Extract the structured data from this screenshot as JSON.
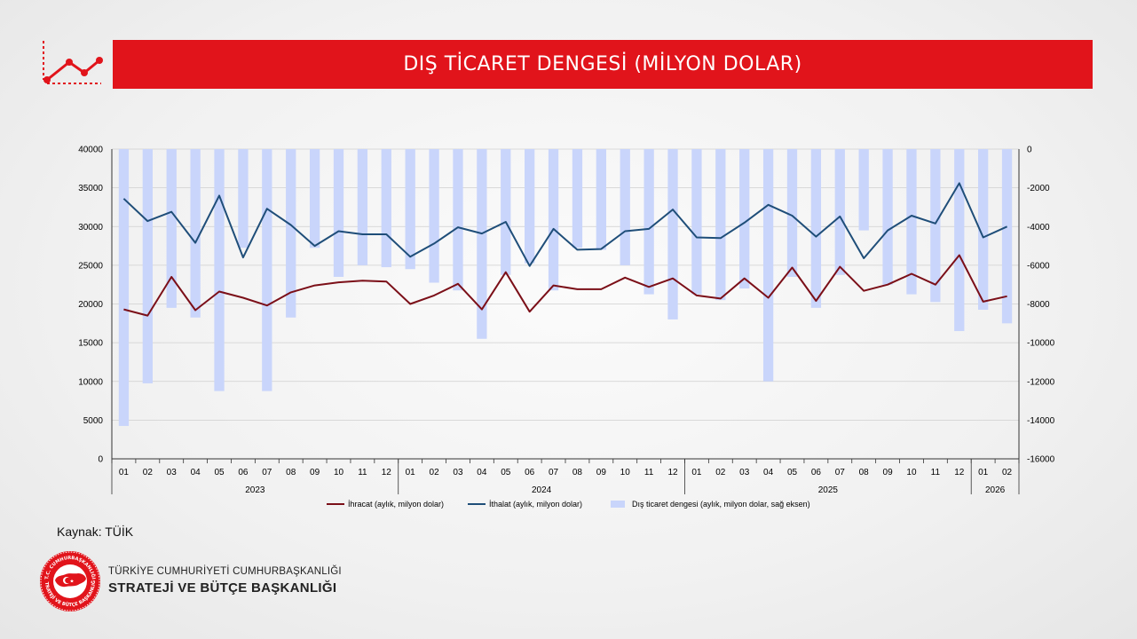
{
  "title": "DIŞ TİCARET DENGESİ (MİLYON DOLAR)",
  "source_label": "Kaynak: TÜİK",
  "org": {
    "line1": "TÜRKİYE CUMHURİYETİ CUMHURBAŞKANLIĞI",
    "line2": "STRATEJİ VE BÜTÇE BAŞKANLIĞI",
    "seal_top": "T.C. CUMHURBAŞKANLIĞI",
    "seal_bottom": "STRATEJİ VE BÜTÇE BAŞKANLIĞI"
  },
  "colors": {
    "accent": "#e1141b",
    "export": "#7b0f18",
    "import": "#1f4e79",
    "balance": "#c9d5fb"
  },
  "chart_data": {
    "type": "bar+line",
    "categories": [
      "01",
      "02",
      "03",
      "04",
      "05",
      "06",
      "07",
      "08",
      "09",
      "10",
      "11",
      "12",
      "01",
      "02",
      "03",
      "04",
      "05",
      "06",
      "07",
      "08",
      "09",
      "10",
      "11",
      "12",
      "01",
      "02",
      "03",
      "04",
      "05",
      "06",
      "07",
      "08",
      "09",
      "10",
      "11",
      "12",
      "01",
      "02"
    ],
    "year_groups": [
      {
        "label": "2023",
        "count": 12
      },
      {
        "label": "2024",
        "count": 12
      },
      {
        "label": "2025",
        "count": 12
      },
      {
        "label": "2026",
        "count": 2
      }
    ],
    "left_axis": {
      "ylim": [
        0,
        40000
      ],
      "ticks": [
        0,
        5000,
        10000,
        15000,
        20000,
        25000,
        30000,
        35000,
        40000
      ]
    },
    "right_axis": {
      "ylim": [
        -16000,
        0
      ],
      "ticks": [
        -16000,
        -14000,
        -12000,
        -10000,
        -8000,
        -6000,
        -4000,
        -2000,
        0
      ]
    },
    "grid": true,
    "legend_position": "bottom",
    "series": [
      {
        "name": "İhracat (aylık, milyon dolar)",
        "kind": "line",
        "axis": "left",
        "color": "#7b0f18",
        "values": [
          19300,
          18500,
          23500,
          19200,
          21600,
          20800,
          19800,
          21500,
          22400,
          22800,
          23000,
          22900,
          20000,
          21100,
          22600,
          19300,
          24100,
          19000,
          22400,
          21900,
          21900,
          23400,
          22200,
          23300,
          21100,
          20700,
          23300,
          20800,
          24700,
          20400,
          24800,
          21700,
          22500,
          23900,
          22500,
          26300,
          20300,
          21000
        ]
      },
      {
        "name": "İthalat (aylık, milyon dolar)",
        "kind": "line",
        "axis": "left",
        "color": "#1f4e79",
        "values": [
          33600,
          30700,
          31900,
          27900,
          34000,
          26000,
          32300,
          30200,
          27500,
          29400,
          29000,
          29000,
          26100,
          27800,
          29900,
          29100,
          30600,
          24900,
          29700,
          27000,
          27100,
          29400,
          29700,
          32200,
          28600,
          28500,
          30500,
          32800,
          31400,
          28700,
          31300,
          25900,
          29500,
          31400,
          30400,
          35600,
          28600,
          30000
        ]
      },
      {
        "name": "Dış ticaret dengesi (aylık, milyon dolar, sağ eksen)",
        "kind": "bar",
        "axis": "right",
        "color": "#c9d5fb",
        "values": [
          -14300,
          -12100,
          -8200,
          -8700,
          -12500,
          -5100,
          -12500,
          -8700,
          -5100,
          -6600,
          -6000,
          -6100,
          -6200,
          -6900,
          -7300,
          -9800,
          -6500,
          -5900,
          -7300,
          -5100,
          -5200,
          -6000,
          -7500,
          -8800,
          -7500,
          -7800,
          -7200,
          -12000,
          -6600,
          -8200,
          -6500,
          -4200,
          -7000,
          -7500,
          -7900,
          -9400,
          -8300,
          -9000
        ]
      }
    ]
  }
}
